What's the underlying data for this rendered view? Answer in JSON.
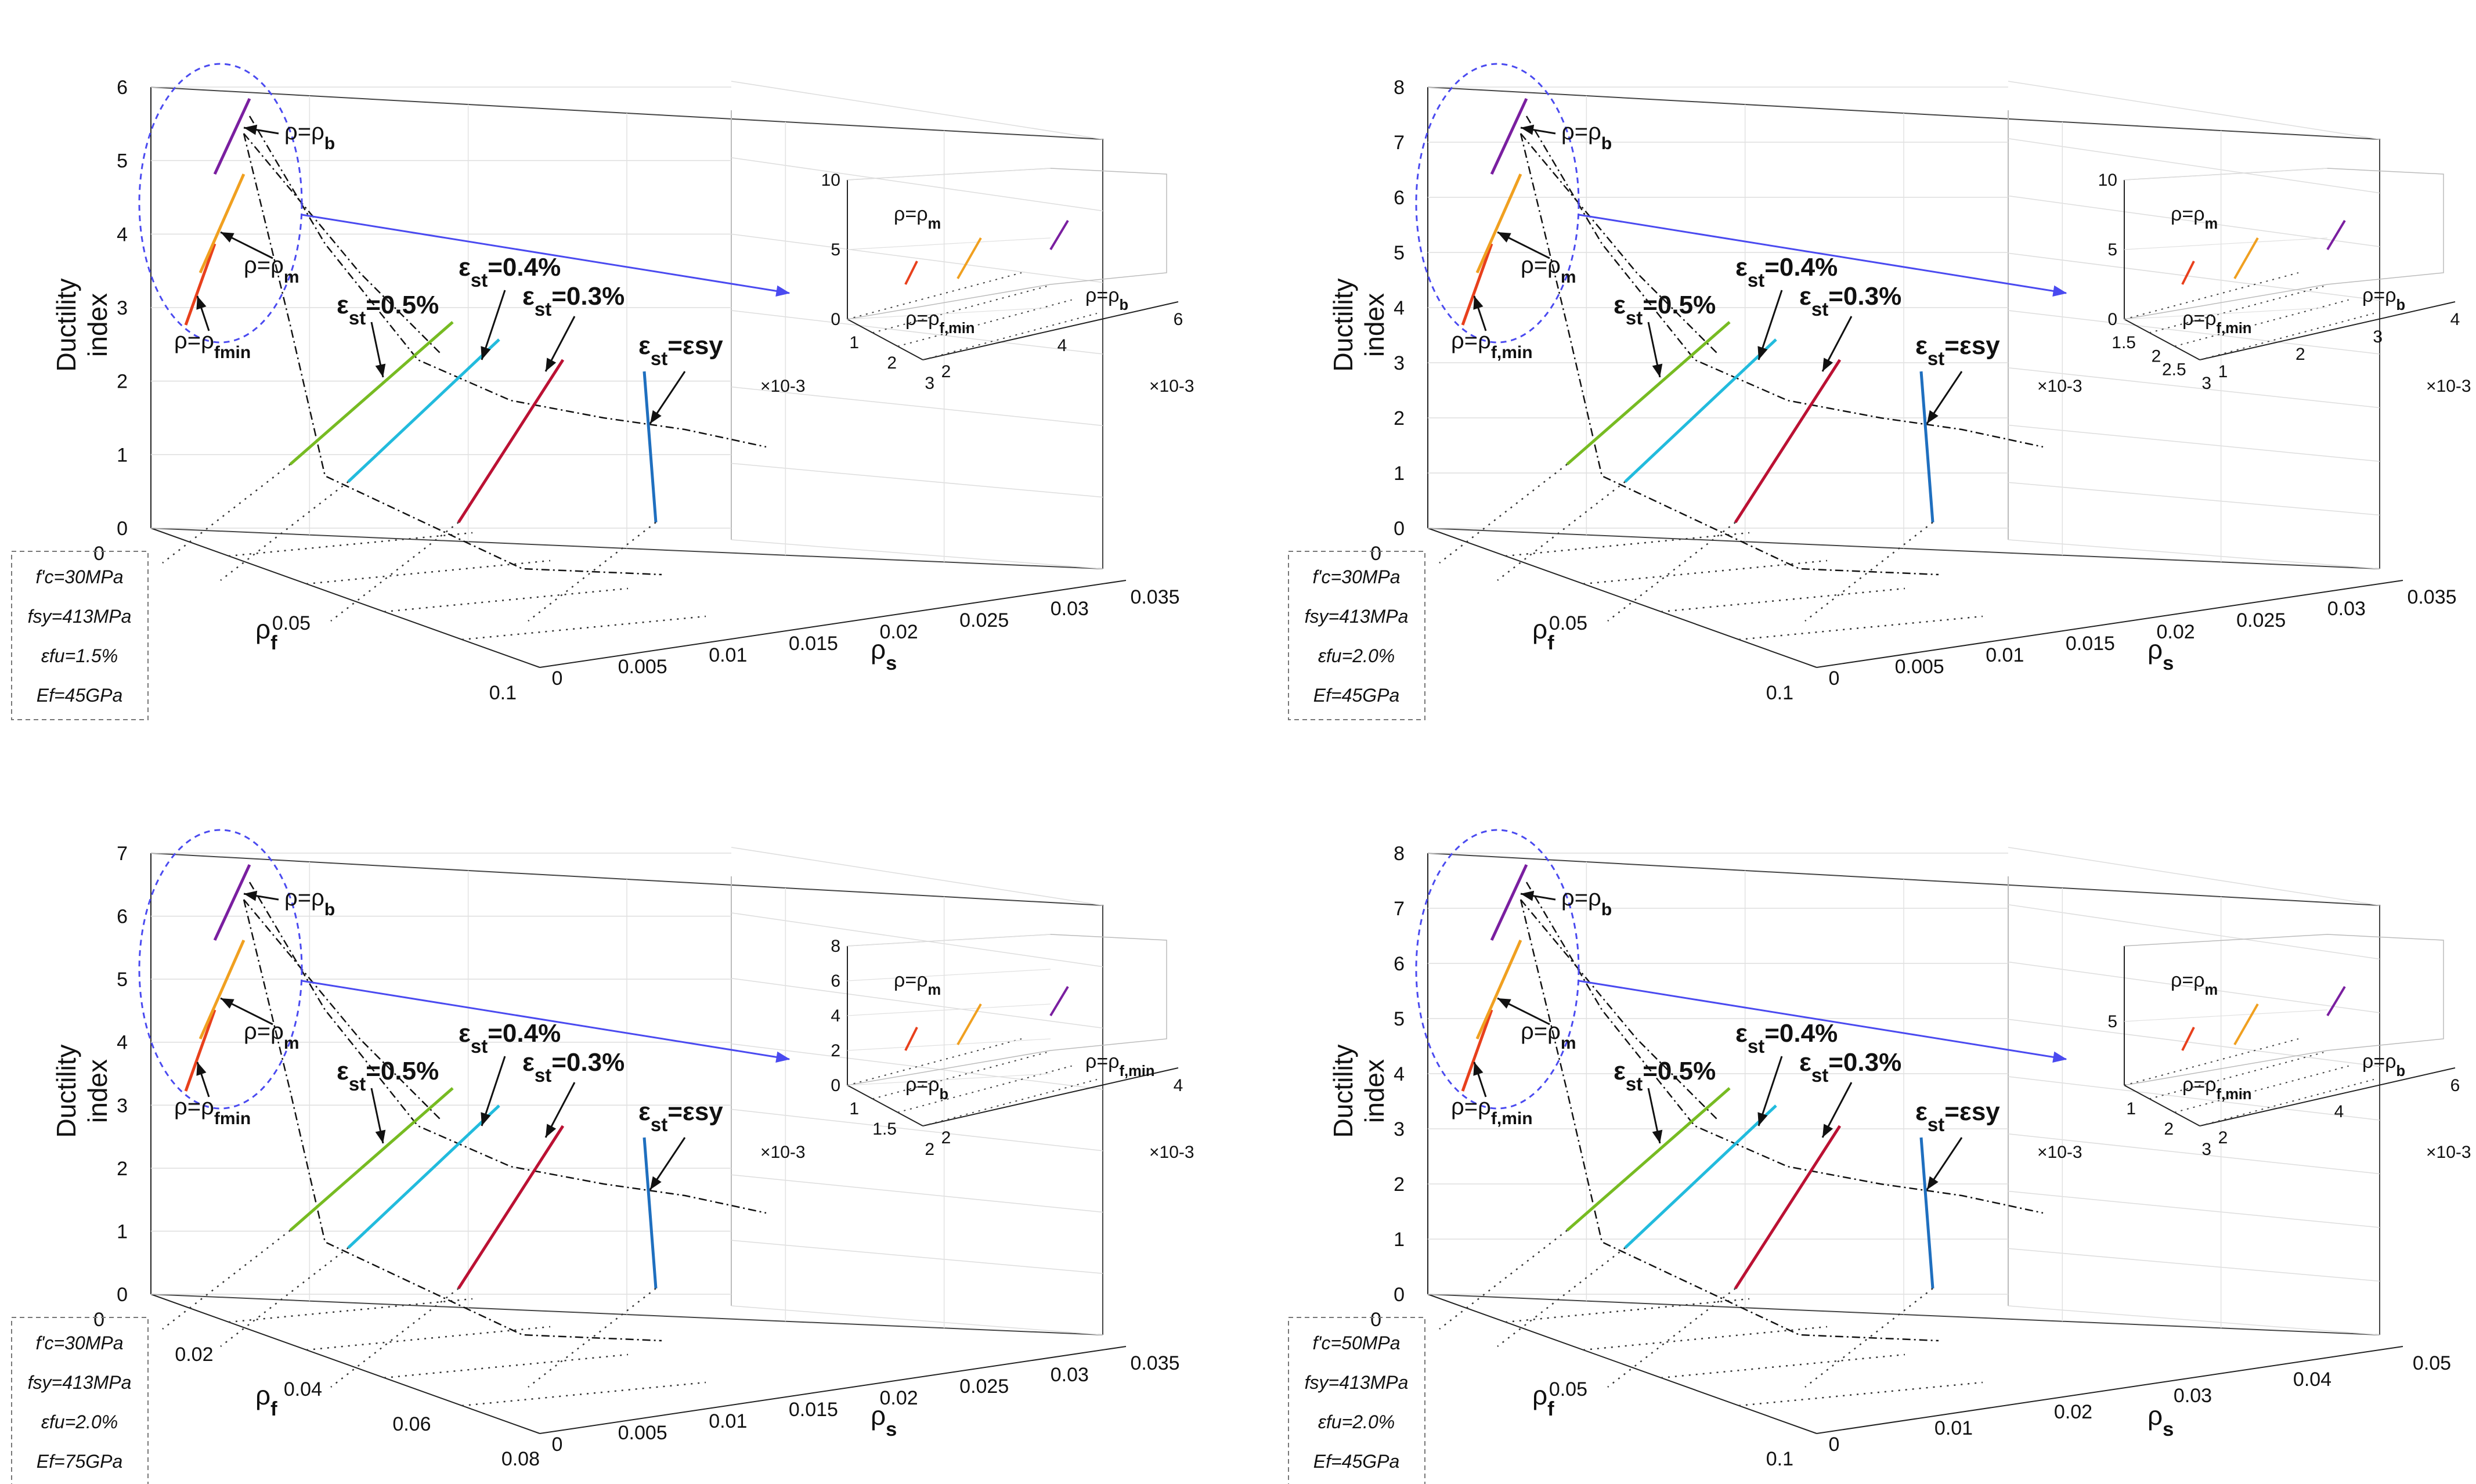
{
  "chart_data": [
    {
      "type": "line3d",
      "panel": "a",
      "zlabel": [
        "Ductility",
        "index"
      ],
      "xlabel": "ρf",
      "ylabel": "ρs",
      "zlim": [
        0,
        6
      ],
      "zticks": [
        "0",
        "1",
        "2",
        "3",
        "4",
        "5",
        "6"
      ],
      "xticks": [
        "0",
        "0.05",
        "0.1"
      ],
      "yticks": [
        "0",
        "0.005",
        "0.01",
        "0.015",
        "0.02",
        "0.025",
        "0.03",
        "0.035"
      ],
      "params": [
        "f'c=30MPa",
        "fsy=413MPa",
        "εfu=1.5%",
        "Ef=45GPa"
      ],
      "strain_lines": [
        {
          "label": "εst=0.5%",
          "color": "#77bb22"
        },
        {
          "label": "εst=0.4%",
          "color": "#22bbdd"
        },
        {
          "label": "εst=0.3%",
          "color": "#bb1133"
        },
        {
          "label": "εst=εsy",
          "color": "#1f6fbf"
        }
      ],
      "ratio_labels": [
        "ρ=ρb",
        "ρ=ρm",
        "ρ=ρfmin"
      ],
      "inset": {
        "zticks": [
          "0",
          "5",
          "10"
        ],
        "xticks": [
          "1",
          "2",
          "3"
        ],
        "yticks": [
          "2",
          "4",
          "6"
        ],
        "exp_x": "×10-3",
        "exp_y": "×10-3",
        "labels": [
          "ρ=ρm",
          "ρ=ρf,min",
          "ρ=ρb"
        ]
      }
    },
    {
      "type": "line3d",
      "panel": "b",
      "zlabel": [
        "Ductility",
        "index"
      ],
      "xlabel": "ρf",
      "ylabel": "ρs",
      "zlim": [
        0,
        8
      ],
      "zticks": [
        "0",
        "1",
        "2",
        "3",
        "4",
        "5",
        "6",
        "7",
        "8"
      ],
      "xticks": [
        "0",
        "0.05",
        "0.1"
      ],
      "yticks": [
        "0",
        "0.005",
        "0.01",
        "0.015",
        "0.02",
        "0.025",
        "0.03",
        "0.035"
      ],
      "params": [
        "f'c=30MPa",
        "fsy=413MPa",
        "εfu=2.0%",
        "Ef=45GPa"
      ],
      "strain_lines": [
        {
          "label": "εst=0.5%",
          "color": "#77bb22"
        },
        {
          "label": "εst=0.4%",
          "color": "#22bbdd"
        },
        {
          "label": "εst=0.3%",
          "color": "#bb1133"
        },
        {
          "label": "εst=εsy",
          "color": "#1f6fbf"
        }
      ],
      "ratio_labels": [
        "ρ=ρb",
        "ρ=ρm",
        "ρ=ρf,min"
      ],
      "inset": {
        "zticks": [
          "0",
          "5",
          "10"
        ],
        "xticks": [
          "1.5",
          "2",
          "2.5",
          "3"
        ],
        "yticks": [
          "1",
          "2",
          "3",
          "4"
        ],
        "exp_x": "×10-3",
        "exp_y": "×10-3",
        "labels": [
          "ρ=ρm",
          "ρ=ρf,min",
          "ρ=ρb"
        ]
      }
    },
    {
      "type": "line3d",
      "panel": "c",
      "zlabel": [
        "Ductility",
        "index"
      ],
      "xlabel": "ρf",
      "ylabel": "ρs",
      "zlim": [
        0,
        7
      ],
      "zticks": [
        "0",
        "1",
        "2",
        "3",
        "4",
        "5",
        "6",
        "7"
      ],
      "xticks": [
        "0",
        "0.02",
        "0.04",
        "0.06",
        "0.08"
      ],
      "yticks": [
        "0",
        "0.005",
        "0.01",
        "0.015",
        "0.02",
        "0.025",
        "0.03",
        "0.035"
      ],
      "params": [
        "f'c=30MPa",
        "fsy=413MPa",
        "εfu=2.0%",
        "Ef=75GPa"
      ],
      "strain_lines": [
        {
          "label": "εst=0.5%",
          "color": "#77bb22"
        },
        {
          "label": "εst=0.4%",
          "color": "#22bbdd"
        },
        {
          "label": "εst=0.3%",
          "color": "#bb1133"
        },
        {
          "label": "εst=εsy",
          "color": "#1f6fbf"
        }
      ],
      "ratio_labels": [
        "ρ=ρb",
        "ρ=ρm",
        "ρ=ρfmin"
      ],
      "inset": {
        "zticks": [
          "0",
          "2",
          "4",
          "6",
          "8"
        ],
        "xticks": [
          "1",
          "1.5",
          "2"
        ],
        "yticks": [
          "2",
          "4"
        ],
        "exp_x": "×10-3",
        "exp_y": "×10-3",
        "labels": [
          "ρ=ρm",
          "ρ=ρb",
          "ρ=ρf,min"
        ]
      }
    },
    {
      "type": "line3d",
      "panel": "d",
      "zlabel": [
        "Ductility",
        "index"
      ],
      "xlabel": "ρf",
      "ylabel": "ρs",
      "zlim": [
        0,
        8
      ],
      "zticks": [
        "0",
        "1",
        "2",
        "3",
        "4",
        "5",
        "6",
        "7",
        "8"
      ],
      "xticks": [
        "0",
        "0.05",
        "0.1"
      ],
      "yticks": [
        "0",
        "0.01",
        "0.02",
        "0.03",
        "0.04",
        "0.05"
      ],
      "params": [
        "f'c=50MPa",
        "fsy=413MPa",
        "εfu=2.0%",
        "Ef=45GPa"
      ],
      "strain_lines": [
        {
          "label": "εst=0.5%",
          "color": "#77bb22"
        },
        {
          "label": "εst=0.4%",
          "color": "#22bbdd"
        },
        {
          "label": "εst=0.3%",
          "color": "#bb1133"
        },
        {
          "label": "εst=εsy",
          "color": "#1f6fbf"
        }
      ],
      "ratio_labels": [
        "ρ=ρb",
        "ρ=ρm",
        "ρ=ρf,min"
      ],
      "inset": {
        "zticks": [
          "5"
        ],
        "xticks": [
          "1",
          "2",
          "3"
        ],
        "yticks": [
          "2",
          "4",
          "6"
        ],
        "exp_x": "×10-3",
        "exp_y": "×10-3",
        "labels": [
          "ρ=ρm",
          "ρ=ρf,min",
          "ρ=ρb"
        ]
      }
    }
  ],
  "colors": {
    "green": "#77bb22",
    "cyan": "#22bbdd",
    "red": "#bb1133",
    "blue": "#1f6fbf",
    "orange": "#f0a020",
    "purple": "#7a1fa0",
    "redorange": "#e8401c",
    "ellipse": "#4a4af0"
  }
}
